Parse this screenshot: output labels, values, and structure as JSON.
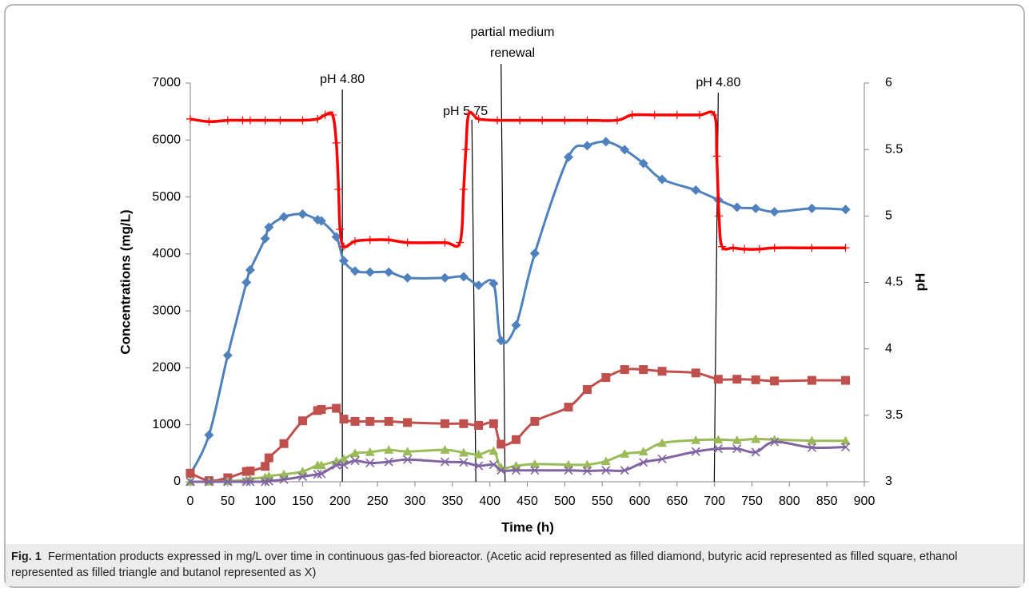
{
  "chart_data": {
    "type": "line",
    "xlabel": "Time (h)",
    "ylabel": "Concentrations (mg/L)",
    "y2label": "pH",
    "xlim": [
      0,
      900
    ],
    "xticks": [
      0,
      50,
      100,
      150,
      200,
      250,
      300,
      350,
      400,
      450,
      500,
      550,
      600,
      650,
      700,
      750,
      800,
      850,
      900
    ],
    "ylim": [
      0,
      7000
    ],
    "yticks": [
      0,
      1000,
      2000,
      3000,
      4000,
      5000,
      6000,
      7000
    ],
    "y2lim": [
      3,
      6
    ],
    "y2ticks": [
      3,
      3.5,
      4,
      4.5,
      5,
      5.5,
      6
    ],
    "annotations": [
      {
        "text": "pH 4.80",
        "x": 203
      },
      {
        "text": "pH 5.75",
        "x": 376
      },
      {
        "text": "partial medium renewal",
        "x": 415
      },
      {
        "text": "pH 4.80",
        "x": 705
      }
    ],
    "series": [
      {
        "color": "#4f81bd",
        "marker": "diamond",
        "x": [
          0,
          25,
          50,
          75,
          80,
          100,
          105,
          125,
          150,
          170,
          175,
          195,
          205,
          220,
          240,
          265,
          290,
          340,
          365,
          385,
          405,
          415,
          435,
          460,
          505,
          530,
          555,
          580,
          605,
          630,
          675,
          705,
          730,
          755,
          780,
          830,
          875
        ],
        "values": [
          130,
          820,
          2220,
          3500,
          3720,
          4270,
          4470,
          4650,
          4700,
          4600,
          4580,
          4300,
          3880,
          3700,
          3680,
          3680,
          3580,
          3580,
          3600,
          3450,
          3480,
          2480,
          2750,
          4010,
          5700,
          5900,
          5970,
          5830,
          5590,
          5310,
          5120,
          4950,
          4820,
          4800,
          4740,
          4800,
          4780
        ]
      },
      {
        "color": "#c0504d",
        "marker": "square",
        "x": [
          0,
          25,
          50,
          75,
          80,
          100,
          105,
          125,
          150,
          170,
          175,
          195,
          205,
          220,
          240,
          265,
          290,
          340,
          365,
          385,
          405,
          415,
          435,
          460,
          505,
          530,
          555,
          580,
          605,
          630,
          675,
          705,
          730,
          755,
          780,
          830,
          875
        ],
        "values": [
          150,
          20,
          70,
          180,
          190,
          270,
          420,
          670,
          1070,
          1250,
          1270,
          1290,
          1100,
          1060,
          1060,
          1060,
          1040,
          1020,
          1020,
          990,
          1020,
          660,
          740,
          1060,
          1310,
          1620,
          1830,
          1970,
          1970,
          1940,
          1910,
          1800,
          1800,
          1790,
          1770,
          1780,
          1780
        ]
      },
      {
        "color": "#9bbb59",
        "marker": "triangle",
        "x": [
          0,
          25,
          50,
          75,
          80,
          100,
          105,
          125,
          150,
          170,
          175,
          195,
          205,
          220,
          240,
          265,
          290,
          340,
          365,
          385,
          405,
          415,
          435,
          460,
          505,
          530,
          555,
          580,
          605,
          630,
          675,
          705,
          730,
          755,
          780,
          830,
          875
        ],
        "values": [
          0,
          0,
          10,
          30,
          50,
          80,
          100,
          130,
          180,
          290,
          290,
          360,
          400,
          500,
          520,
          560,
          530,
          560,
          510,
          480,
          540,
          250,
          280,
          310,
          300,
          300,
          360,
          490,
          530,
          680,
          730,
          740,
          730,
          750,
          740,
          720,
          720
        ]
      },
      {
        "color": "#8064a2",
        "marker": "x",
        "x": [
          0,
          25,
          50,
          75,
          80,
          100,
          105,
          125,
          150,
          170,
          175,
          195,
          205,
          220,
          240,
          265,
          290,
          340,
          365,
          385,
          405,
          415,
          435,
          460,
          505,
          530,
          555,
          580,
          605,
          630,
          675,
          705,
          730,
          755,
          780,
          830,
          875
        ],
        "values": [
          0,
          0,
          0,
          0,
          0,
          0,
          10,
          40,
          90,
          130,
          140,
          290,
          300,
          370,
          330,
          350,
          390,
          350,
          340,
          280,
          300,
          200,
          200,
          200,
          200,
          190,
          200,
          200,
          340,
          400,
          530,
          580,
          580,
          520,
          700,
          600,
          610
        ]
      },
      {
        "color": "#ff0000",
        "marker": "plus",
        "axis": "y2",
        "x": [
          0,
          25,
          50,
          70,
          80,
          100,
          120,
          150,
          170,
          180,
          190,
          195,
          198,
          200,
          205,
          220,
          240,
          265,
          290,
          340,
          360,
          365,
          368,
          372,
          385,
          410,
          440,
          470,
          500,
          530,
          570,
          590,
          620,
          650,
          680,
          700,
          703,
          706,
          710,
          725,
          740,
          760,
          780,
          830,
          875
        ],
        "values": [
          5.73,
          5.71,
          5.72,
          5.72,
          5.72,
          5.72,
          5.72,
          5.72,
          5.73,
          5.76,
          5.76,
          5.55,
          5.2,
          4.9,
          4.77,
          4.81,
          4.82,
          4.82,
          4.8,
          4.8,
          4.8,
          5.2,
          5.5,
          5.77,
          5.73,
          5.72,
          5.72,
          5.72,
          5.72,
          5.72,
          5.72,
          5.76,
          5.76,
          5.76,
          5.76,
          5.76,
          5.45,
          5.0,
          4.77,
          4.76,
          4.75,
          4.75,
          4.76,
          4.76,
          4.76
        ]
      }
    ],
    "caption_label": "Fig. 1",
    "caption": "Fermentation products expressed in mg/L over time in continuous gas-fed bioreactor. (Acetic acid represented as filled diamond, butyric acid represented as filled square, ethanol represented as filled triangle and butanol represented as X)"
  }
}
